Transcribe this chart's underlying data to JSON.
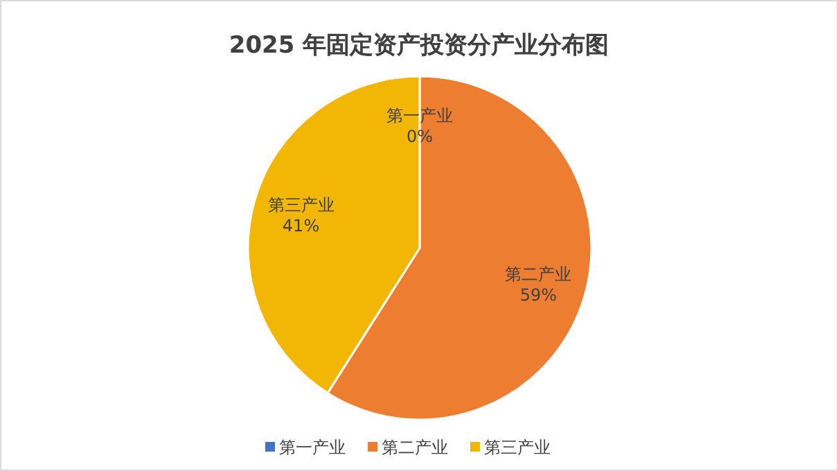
{
  "chart_data": {
    "type": "pie",
    "title": "2025 年固定资产投资分产业分布图",
    "categories": [
      "第一产业",
      "第二产业",
      "第三产业"
    ],
    "values": [
      0,
      59,
      41
    ],
    "colors": [
      "#4472c4",
      "#ed7d31",
      "#f2b705"
    ],
    "value_labels": [
      "0%",
      "59%",
      "41%"
    ],
    "legend": "bottom"
  }
}
